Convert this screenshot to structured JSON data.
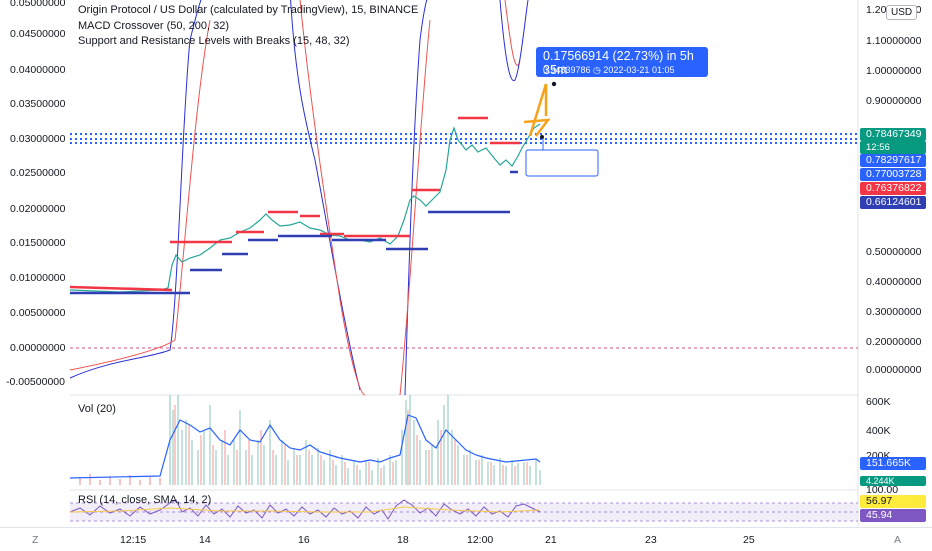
{
  "legend": {
    "line1": "Origin Protocol / US Dollar (calculated by TradingView), 15, BINANCE",
    "line2": "MACD Crossover (50, 200, 32)",
    "line3": " Support and Resistance Levels with Breaks (15, 48, 32)"
  },
  "currency_button": "USD",
  "left_axis": [
    "0.05000000",
    "0.04500000",
    "0.04000000",
    "0.03500000",
    "0.03000000",
    "0.02500000",
    "0.02000000",
    "0.01500000",
    "0.01000000",
    "0.00500000",
    "0.00000000",
    "-0.00500000"
  ],
  "right_axis": [
    "1.20000000",
    "1.10000000",
    "1.00000000",
    "0.90000000",
    "0.80000000",
    "0.70000000",
    "0.60000000",
    "0.50000000",
    "0.40000000",
    "0.30000000",
    "0.20000000",
    "0.10000000",
    "0.00000000"
  ],
  "price_tags": {
    "last_price": "0.78467349",
    "countdown": "12:56",
    "level_a": "0.78297617",
    "level_b": "0.77003728",
    "level_red": "0.76376822",
    "level_blue": "0.66124601"
  },
  "tooltip": {
    "main": "0.17566914 (22.73%) in 5h 35m",
    "sub": "0.94839786 ◷ 2022-03-21  01:05"
  },
  "volume_pane": {
    "label": "Vol (20)",
    "axis": [
      "600K",
      "400K",
      "200K"
    ],
    "current_value": "151.665K",
    "secondary_value": "4.244K"
  },
  "rsi_pane": {
    "label": "RSI (14, close, SMA, 14, 2)",
    "axis_top": "100.00",
    "value_rsi": "56.97",
    "value_sma": "45.94"
  },
  "time_axis": [
    "12:15",
    "14",
    "16",
    "18",
    "12:00",
    "21",
    "23",
    "25"
  ],
  "corner_icons": {
    "left": "Z",
    "right": "A"
  },
  "colors": {
    "green_tag": "#089981",
    "blue_tag": "#2962ff",
    "red_tag": "#f23645",
    "yellow_tag": "#ffeb3b",
    "purple_tag": "#7e57c2",
    "resistance": "#f23645",
    "support": "#2f3fb3"
  }
}
